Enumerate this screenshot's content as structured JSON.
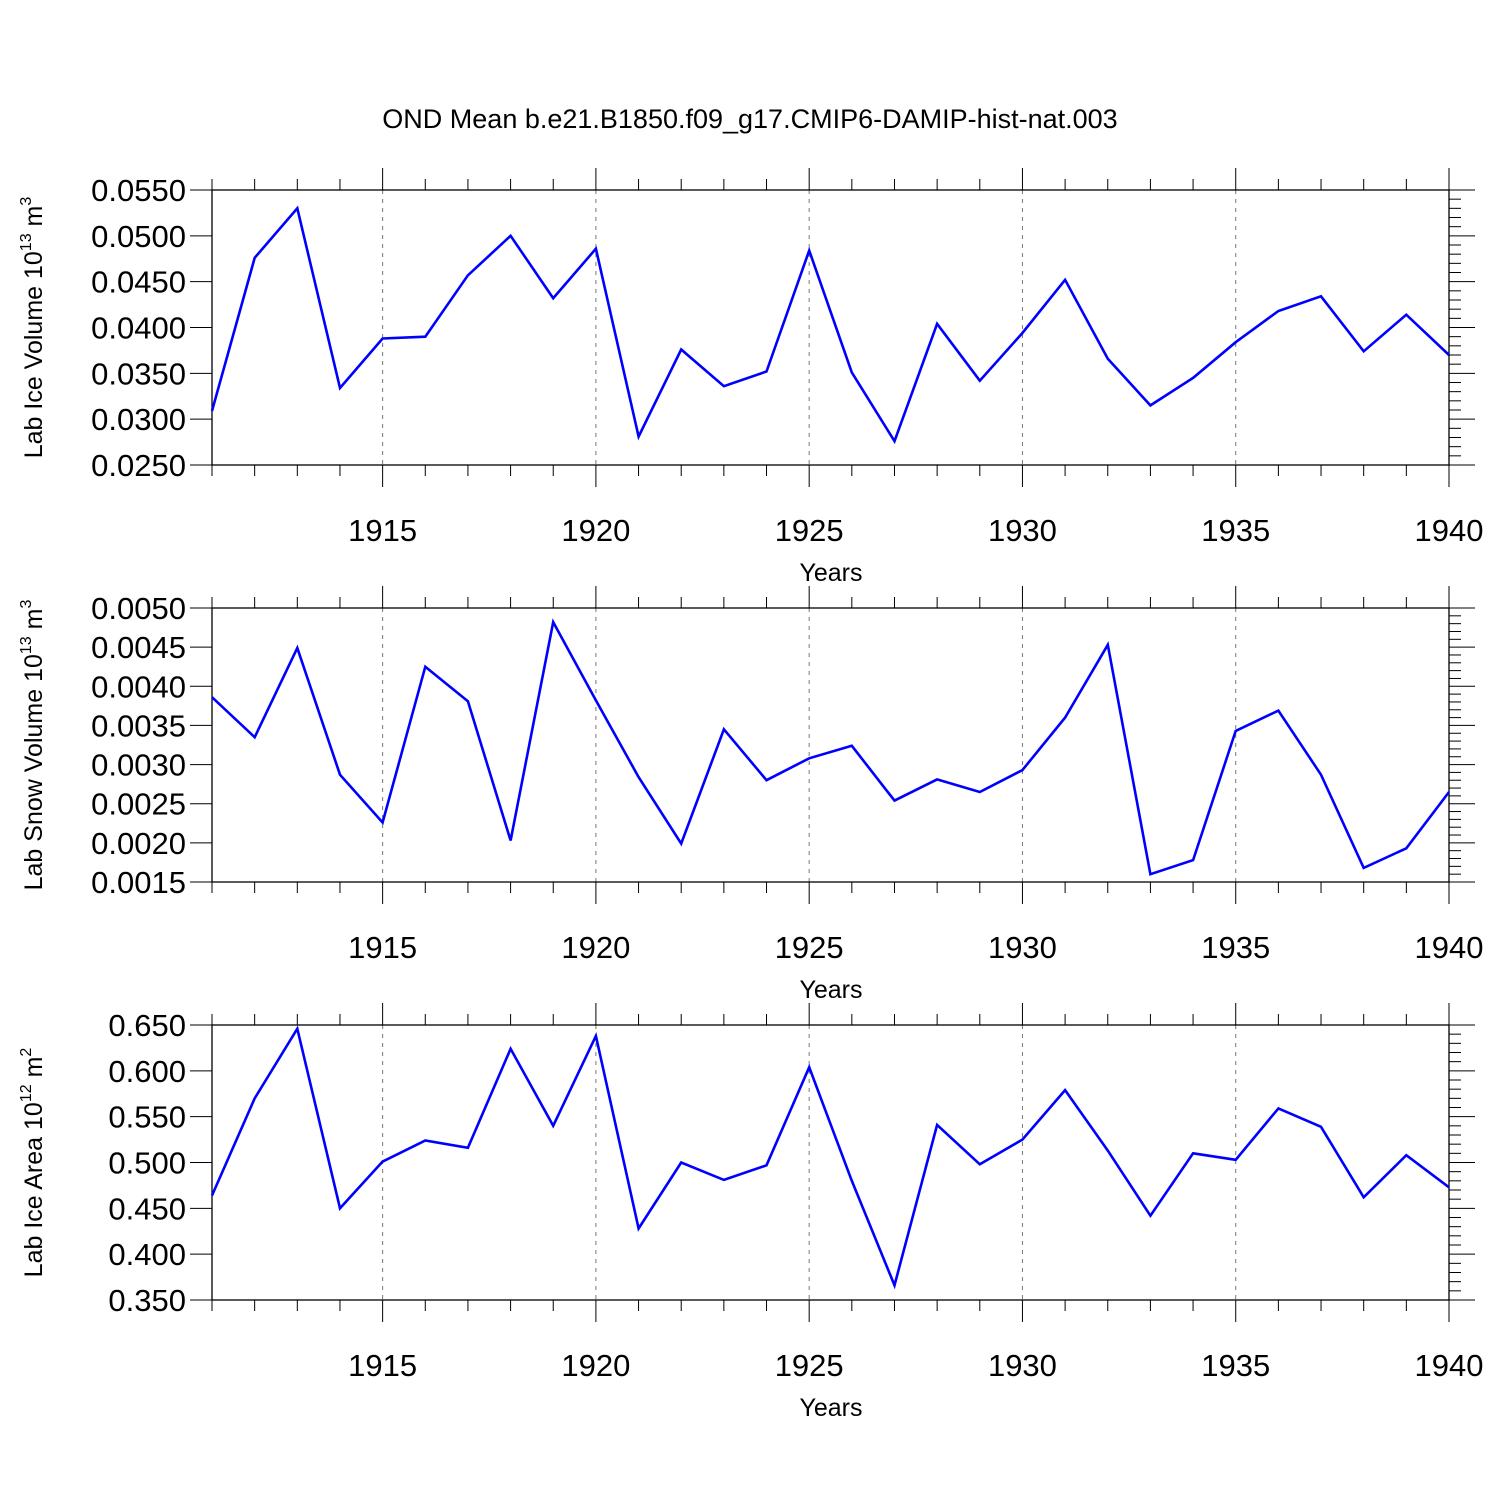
{
  "title": "OND Mean b.e21.B1850.f09_g17.CMIP6-DAMIP-hist-nat.003",
  "colors": {
    "line": "#0000ff",
    "frame": "#000000",
    "grid": "#777777"
  },
  "chart_data": [
    {
      "type": "line",
      "name": "lab-ice-volume",
      "ylabel_main": "Lab Ice Volume 10",
      "ylabel_exp": "13",
      "ylabel_unit": " m",
      "ylabel_unit_exp": "3",
      "xlabel": "Years",
      "xlim": [
        1911,
        1940
      ],
      "ylim": [
        0.025,
        0.055
      ],
      "yticks": [
        "0.0250",
        "0.0300",
        "0.0350",
        "0.0400",
        "0.0450",
        "0.0500",
        "0.0550"
      ],
      "xticks": [
        "1915",
        "1920",
        "1925",
        "1930",
        "1935",
        "1940"
      ],
      "x": [
        1911,
        1912,
        1913,
        1914,
        1915,
        1916,
        1917,
        1918,
        1919,
        1920,
        1921,
        1922,
        1923,
        1924,
        1925,
        1926,
        1927,
        1928,
        1929,
        1930,
        1931,
        1932,
        1933,
        1934,
        1935,
        1936,
        1937,
        1938,
        1939,
        1940
      ],
      "values": [
        0.0309,
        0.0476,
        0.053,
        0.0334,
        0.0388,
        0.039,
        0.0457,
        0.05,
        0.0432,
        0.0486,
        0.0281,
        0.0376,
        0.0336,
        0.0352,
        0.0484,
        0.0351,
        0.0276,
        0.0404,
        0.0342,
        0.0394,
        0.0452,
        0.0366,
        0.0315,
        0.0345,
        0.0384,
        0.0418,
        0.0434,
        0.0374,
        0.0414,
        0.037
      ]
    },
    {
      "type": "line",
      "name": "lab-snow-volume",
      "ylabel_main": "Lab Snow Volume 10",
      "ylabel_exp": "13",
      "ylabel_unit": " m",
      "ylabel_unit_exp": "3",
      "xlabel": "Years",
      "xlim": [
        1911,
        1940
      ],
      "ylim": [
        0.0015,
        0.005
      ],
      "yticks": [
        "0.0015",
        "0.0020",
        "0.0025",
        "0.0030",
        "0.0035",
        "0.0040",
        "0.0045",
        "0.0050"
      ],
      "xticks": [
        "1915",
        "1920",
        "1925",
        "1930",
        "1935",
        "1940"
      ],
      "x": [
        1911,
        1912,
        1913,
        1914,
        1915,
        1916,
        1917,
        1918,
        1919,
        1920,
        1921,
        1922,
        1923,
        1924,
        1925,
        1926,
        1927,
        1928,
        1929,
        1930,
        1931,
        1932,
        1933,
        1934,
        1935,
        1936,
        1937,
        1938,
        1939,
        1940
      ],
      "values": [
        0.00386,
        0.00335,
        0.00449,
        0.00287,
        0.00226,
        0.00425,
        0.00381,
        0.00203,
        0.00482,
        0.00382,
        0.00284,
        0.00199,
        0.00345,
        0.0028,
        0.00308,
        0.00324,
        0.00254,
        0.00281,
        0.00265,
        0.00293,
        0.0036,
        0.00453,
        0.0016,
        0.00178,
        0.00343,
        0.00369,
        0.00287,
        0.00168,
        0.00193,
        0.00265
      ]
    },
    {
      "type": "line",
      "name": "lab-ice-area",
      "ylabel_main": "Lab Ice Area 10",
      "ylabel_exp": "12",
      "ylabel_unit": " m",
      "ylabel_unit_exp": "2",
      "xlabel": "Years",
      "xlim": [
        1911,
        1940
      ],
      "ylim": [
        0.35,
        0.65
      ],
      "yticks": [
        "0.350",
        "0.400",
        "0.450",
        "0.500",
        "0.550",
        "0.600",
        "0.650"
      ],
      "xticks": [
        "1915",
        "1920",
        "1925",
        "1930",
        "1935",
        "1940"
      ],
      "x": [
        1911,
        1912,
        1913,
        1914,
        1915,
        1916,
        1917,
        1918,
        1919,
        1920,
        1921,
        1922,
        1923,
        1924,
        1925,
        1926,
        1927,
        1928,
        1929,
        1930,
        1931,
        1932,
        1933,
        1934,
        1935,
        1936,
        1937,
        1938,
        1939,
        1940
      ],
      "values": [
        0.464,
        0.57,
        0.646,
        0.45,
        0.501,
        0.524,
        0.516,
        0.624,
        0.54,
        0.638,
        0.428,
        0.5,
        0.481,
        0.497,
        0.604,
        0.48,
        0.366,
        0.541,
        0.498,
        0.525,
        0.579,
        0.513,
        0.442,
        0.51,
        0.503,
        0.559,
        0.539,
        0.462,
        0.508,
        0.473
      ]
    }
  ]
}
